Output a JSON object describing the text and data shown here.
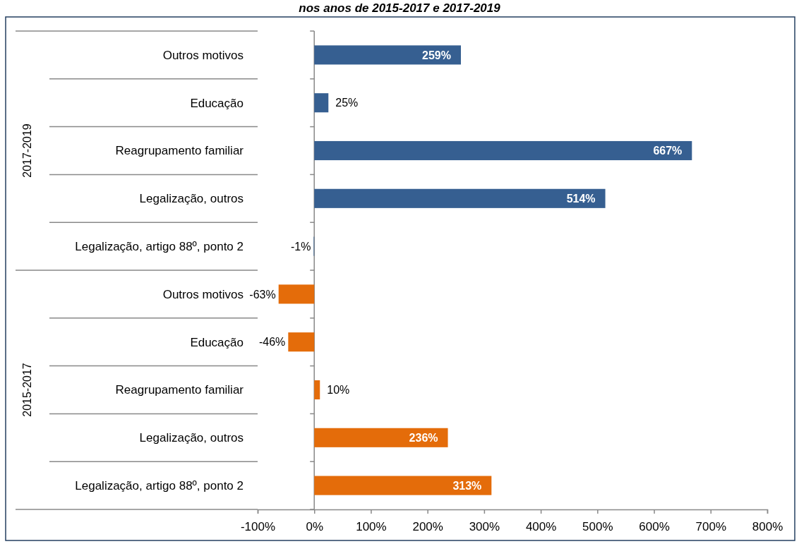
{
  "chart_data": {
    "type": "bar",
    "orientation": "horizontal",
    "title": "nos anos de 2015-2017 e 2017-2019",
    "categories": [
      "Outros motivos",
      "Educação",
      "Reagrupamento familiar",
      "Legalização, outros",
      "Legalização, artigo 88º, ponto 2",
      "Outros motivos",
      "Educação",
      "Reagrupamento familiar",
      "Legalização, outros",
      "Legalização, artigo 88º, ponto 2"
    ],
    "values": [
      259,
      25,
      667,
      514,
      -1,
      -63,
      -46,
      10,
      236,
      313
    ],
    "colors": [
      "#365f91",
      "#365f91",
      "#365f91",
      "#365f91",
      "#365f91",
      "#e46c0a",
      "#e46c0a",
      "#e46c0a",
      "#e46c0a",
      "#e46c0a"
    ],
    "value_labels": [
      "259%",
      "25%",
      "667%",
      "514%",
      "-1%",
      "-63%",
      "-46%",
      "10%",
      "236%",
      "313%"
    ],
    "annotations": [
      "2017-2019",
      "2015-2017"
    ],
    "xlim": [
      -100,
      800
    ],
    "xticks": [
      {
        "value": -100,
        "label": "-100%"
      },
      {
        "value": 0,
        "label": "0%"
      },
      {
        "value": 100,
        "label": "100%"
      },
      {
        "value": 200,
        "label": "200%"
      },
      {
        "value": 300,
        "label": "300%"
      },
      {
        "value": 400,
        "label": "400%"
      },
      {
        "value": 500,
        "label": "500%"
      },
      {
        "value": 600,
        "label": "600%"
      },
      {
        "value": 700,
        "label": "700%"
      },
      {
        "value": 800,
        "label": "800%"
      }
    ]
  }
}
